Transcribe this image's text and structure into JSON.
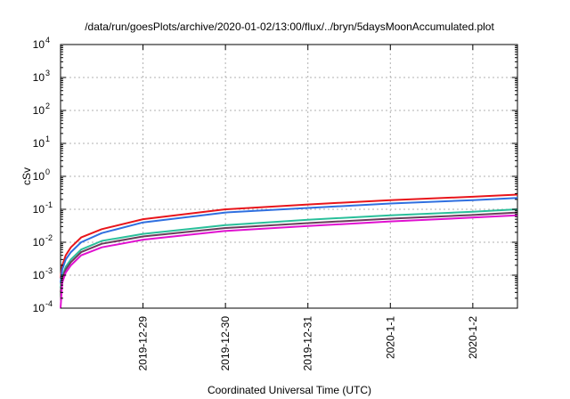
{
  "chart_data": {
    "type": "line",
    "title": "/data/run/goesPlots/archive/2020-01-02/13:00/flux/../bryn/5daysMoonAccumulated.plot",
    "xlabel": "Coordinated Universal Time (UTC)",
    "ylabel": "cSv",
    "y_scale": "log",
    "ylim": [
      0.0001,
      10000
    ],
    "xlim": [
      "2019-12-28T00:00",
      "2020-01-02T13:00"
    ],
    "grid": true,
    "y_ticks": [
      {
        "base": "10",
        "exp": "-4",
        "value": 0.0001
      },
      {
        "base": "10",
        "exp": "-3",
        "value": 0.001
      },
      {
        "base": "10",
        "exp": "-2",
        "value": 0.01
      },
      {
        "base": "10",
        "exp": "-1",
        "value": 0.1
      },
      {
        "base": "10",
        "exp": "0",
        "value": 1
      },
      {
        "base": "10",
        "exp": "1",
        "value": 10
      },
      {
        "base": "10",
        "exp": "2",
        "value": 100
      },
      {
        "base": "10",
        "exp": "3",
        "value": 1000
      },
      {
        "base": "10",
        "exp": "4",
        "value": 10000
      }
    ],
    "x_ticks": [
      {
        "label": "2019-12-29",
        "value": "2019-12-29T00:00"
      },
      {
        "label": "2019-12-30",
        "value": "2019-12-30T00:00"
      },
      {
        "label": "2019-12-31",
        "value": "2019-12-31T00:00"
      },
      {
        "label": "2020-1-1",
        "value": "2020-01-01T00:00"
      },
      {
        "label": "2020-1-2",
        "value": "2020-01-02T00:00"
      }
    ],
    "series": [
      {
        "color": "#e8151b",
        "x": [
          "2019-12-28T00:00",
          "2019-12-28T00:30",
          "2019-12-28T01:30",
          "2019-12-28T03:00",
          "2019-12-28T06:00",
          "2019-12-28T12:00",
          "2019-12-29T00:00",
          "2019-12-30T00:00",
          "2019-12-31T00:00",
          "2020-01-01T00:00",
          "2020-01-02T00:00",
          "2020-01-02T13:00"
        ],
        "y": [
          0.0008,
          0.002,
          0.004,
          0.007,
          0.014,
          0.025,
          0.05,
          0.1,
          0.14,
          0.19,
          0.24,
          0.28
        ]
      },
      {
        "color": "#2f6fe0",
        "x": [
          "2019-12-28T00:00",
          "2019-12-28T00:30",
          "2019-12-28T01:30",
          "2019-12-28T03:00",
          "2019-12-28T06:00",
          "2019-12-28T12:00",
          "2019-12-29T00:00",
          "2019-12-30T00:00",
          "2019-12-31T00:00",
          "2020-01-01T00:00",
          "2020-01-02T00:00",
          "2020-01-02T13:00"
        ],
        "y": [
          0.0006,
          0.0015,
          0.003,
          0.005,
          0.01,
          0.019,
          0.04,
          0.08,
          0.11,
          0.15,
          0.19,
          0.22
        ]
      },
      {
        "color": "#29bf9a",
        "x": [
          "2019-12-28T00:00",
          "2019-12-28T00:30",
          "2019-12-28T01:30",
          "2019-12-28T03:00",
          "2019-12-28T06:00",
          "2019-12-28T12:00",
          "2019-12-29T00:00",
          "2019-12-30T00:00",
          "2019-12-31T00:00",
          "2020-01-01T00:00",
          "2020-01-02T00:00",
          "2020-01-02T13:00"
        ],
        "y": [
          0.0004,
          0.0009,
          0.0018,
          0.003,
          0.006,
          0.011,
          0.018,
          0.033,
          0.048,
          0.066,
          0.084,
          0.1
        ]
      },
      {
        "color": "#6a3d5b",
        "x": [
          "2019-12-28T00:00",
          "2019-12-28T00:30",
          "2019-12-28T01:30",
          "2019-12-28T03:00",
          "2019-12-28T06:00",
          "2019-12-28T12:00",
          "2019-12-29T00:00",
          "2019-12-30T00:00",
          "2019-12-31T00:00",
          "2020-01-01T00:00",
          "2020-01-02T00:00",
          "2020-01-02T13:00"
        ],
        "y": [
          0.0003,
          0.0008,
          0.0015,
          0.0025,
          0.005,
          0.009,
          0.015,
          0.027,
          0.038,
          0.052,
          0.067,
          0.08
        ]
      },
      {
        "color": "#e010d0",
        "x": [
          "2019-12-28T00:00",
          "2019-12-28T00:30",
          "2019-12-28T01:30",
          "2019-12-28T03:00",
          "2019-12-28T06:00",
          "2019-12-28T12:00",
          "2019-12-29T00:00",
          "2019-12-30T00:00",
          "2019-12-31T00:00",
          "2020-01-01T00:00",
          "2020-01-02T00:00",
          "2020-01-02T13:00"
        ],
        "y": [
          0.0001,
          0.0006,
          0.0012,
          0.002,
          0.004,
          0.007,
          0.012,
          0.022,
          0.031,
          0.043,
          0.056,
          0.066
        ]
      }
    ]
  }
}
